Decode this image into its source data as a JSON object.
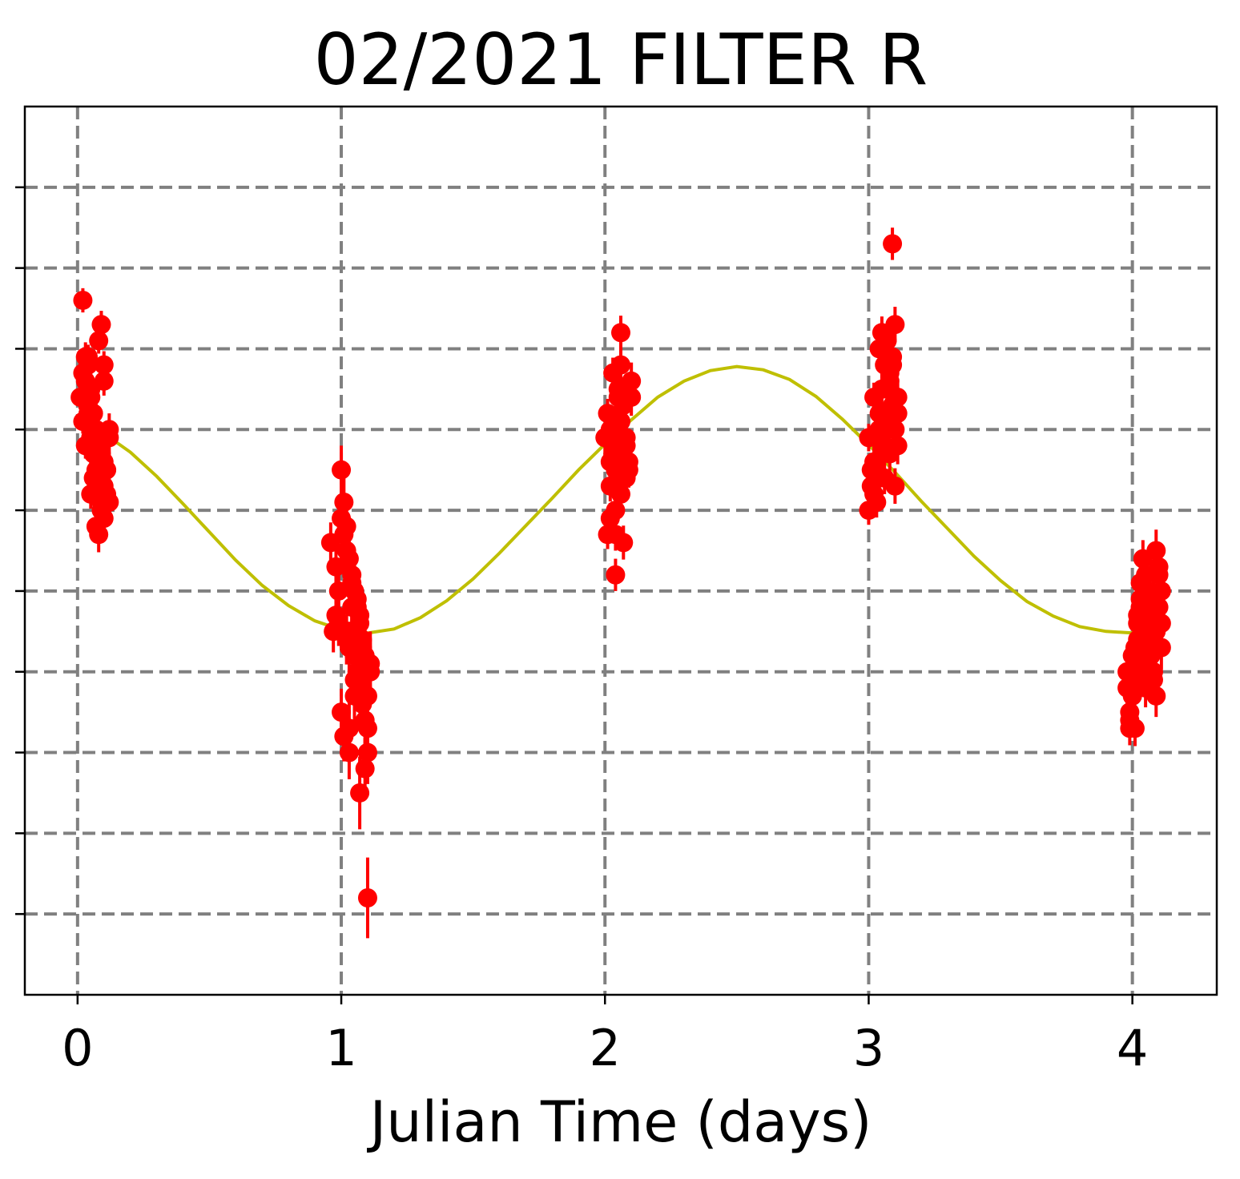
{
  "chart_data": {
    "type": "scatter",
    "title": "02/2021 FILTER R",
    "xlabel": "Julian Time (days)",
    "ylabel": "",
    "xlim": [
      -0.2,
      4.32
    ],
    "ylim": [
      0,
      11
    ],
    "xticks": [
      0,
      1,
      2,
      3,
      4
    ],
    "xtick_labels": [
      "0",
      "1",
      "2",
      "3",
      "4"
    ],
    "yticks": [
      1,
      2,
      3,
      4,
      5,
      6,
      7,
      8,
      9,
      10
    ],
    "ytick_labels_visible": false,
    "grid": true,
    "colors": {
      "points": "#ff0000",
      "fit": "#bfbf00",
      "grid": "#808080"
    },
    "fit_curve": {
      "x": [
        0.0,
        0.1,
        0.2,
        0.3,
        0.4,
        0.5,
        0.6,
        0.7,
        0.8,
        0.9,
        1.0,
        1.1,
        1.2,
        1.3,
        1.4,
        1.5,
        1.6,
        1.7,
        1.8,
        1.9,
        2.0,
        2.1,
        2.2,
        2.3,
        2.4,
        2.5,
        2.6,
        2.7,
        2.8,
        2.9,
        3.0,
        3.1,
        3.2,
        3.3,
        3.4,
        3.5,
        3.6,
        3.7,
        3.8,
        3.9,
        4.0
      ],
      "y": [
        7.05,
        6.95,
        6.72,
        6.42,
        6.08,
        5.73,
        5.38,
        5.07,
        4.82,
        4.63,
        4.52,
        4.48,
        4.53,
        4.67,
        4.88,
        5.15,
        5.47,
        5.81,
        6.15,
        6.5,
        6.82,
        7.12,
        7.4,
        7.6,
        7.73,
        7.78,
        7.74,
        7.62,
        7.41,
        7.13,
        6.81,
        6.47,
        6.11,
        5.77,
        5.43,
        5.13,
        4.87,
        4.69,
        4.56,
        4.5,
        4.48
      ]
    },
    "series": [
      {
        "x": [
          0.01,
          0.02,
          0.03,
          0.02,
          0.04,
          0.05,
          0.06,
          0.07,
          0.08,
          0.09,
          0.1,
          0.11,
          0.03,
          0.04,
          0.05,
          0.06,
          0.07,
          0.08,
          0.09,
          0.1,
          0.11,
          0.12,
          0.04,
          0.05,
          0.06,
          0.07,
          0.08,
          0.09,
          0.03,
          0.06,
          0.1,
          0.08,
          0.05,
          0.09,
          0.07,
          0.11,
          0.1,
          0.12,
          0.02,
          0.08,
          0.06,
          0.04,
          0.1,
          0.12,
          0.09,
          0.07
        ],
        "y": [
          7.4,
          7.7,
          7.9,
          7.1,
          7.3,
          7.5,
          7.2,
          7.0,
          6.9,
          6.7,
          6.6,
          6.5,
          7.6,
          7.8,
          7.4,
          7.0,
          6.8,
          6.6,
          6.4,
          6.3,
          6.2,
          6.1,
          7.2,
          6.9,
          6.7,
          6.5,
          6.3,
          6.0,
          6.8,
          6.4,
          5.9,
          5.7,
          6.2,
          6.1,
          5.8,
          6.5,
          7.8,
          6.9,
          8.6,
          8.1,
          7.2,
          7.9,
          7.6,
          7.0,
          8.3,
          6.7
        ],
        "err": [
          0.15,
          0.15,
          0.18,
          0.15,
          0.16,
          0.17,
          0.18,
          0.19,
          0.2,
          0.2,
          0.21,
          0.21,
          0.15,
          0.16,
          0.16,
          0.17,
          0.18,
          0.19,
          0.2,
          0.2,
          0.21,
          0.22,
          0.16,
          0.17,
          0.18,
          0.19,
          0.2,
          0.21,
          0.16,
          0.18,
          0.22,
          0.22,
          0.18,
          0.2,
          0.2,
          0.21,
          0.17,
          0.21,
          0.15,
          0.16,
          0.17,
          0.15,
          0.18,
          0.2,
          0.17,
          0.19
        ]
      },
      {
        "x": [
          0.96,
          0.97,
          0.98,
          0.99,
          1.0,
          1.01,
          1.02,
          1.03,
          1.04,
          1.05,
          1.06,
          1.07,
          1.08,
          1.09,
          1.1,
          1.11,
          0.98,
          1.0,
          1.02,
          1.04,
          1.06,
          1.08,
          1.1,
          1.01,
          1.03,
          1.05,
          1.07,
          1.09,
          0.99,
          1.02,
          1.04,
          1.06,
          1.08,
          1.1,
          1.0,
          1.03,
          1.05,
          1.07,
          1.09,
          1.11,
          1.01,
          1.04,
          1.06,
          1.08,
          1.1,
          1.03,
          1.07,
          1.05
        ],
        "y": [
          5.6,
          4.5,
          4.7,
          5.0,
          6.5,
          6.1,
          5.8,
          5.4,
          5.2,
          5.0,
          4.8,
          4.6,
          4.4,
          4.2,
          4.1,
          4.0,
          5.3,
          5.9,
          5.5,
          5.1,
          4.9,
          4.3,
          3.7,
          3.2,
          3.0,
          4.2,
          4.0,
          3.4,
          4.6,
          4.4,
          4.8,
          3.9,
          3.6,
          3.0,
          3.5,
          3.3,
          3.9,
          4.7,
          2.8,
          4.1,
          5.7,
          4.5,
          4.0,
          3.8,
          3.3,
          4.3,
          2.5,
          3.7
        ],
        "err": [
          0.25,
          0.26,
          0.27,
          0.28,
          0.3,
          0.3,
          0.31,
          0.32,
          0.33,
          0.34,
          0.35,
          0.36,
          0.37,
          0.38,
          0.39,
          0.4,
          0.28,
          0.29,
          0.31,
          0.33,
          0.35,
          0.37,
          0.39,
          0.31,
          0.33,
          0.35,
          0.37,
          0.39,
          0.28,
          0.31,
          0.33,
          0.35,
          0.37,
          0.39,
          0.29,
          0.32,
          0.34,
          0.36,
          0.38,
          0.4,
          0.3,
          0.33,
          0.35,
          0.37,
          0.4,
          0.32,
          0.45,
          0.34
        ]
      },
      {
        "x": [
          1.1
        ],
        "y": [
          1.2
        ],
        "err": [
          0.5
        ]
      },
      {
        "x": [
          2.0,
          2.01,
          2.02,
          2.03,
          2.04,
          2.05,
          2.06,
          2.07,
          2.08,
          2.09,
          2.1,
          2.02,
          2.04,
          2.06,
          2.08,
          2.1,
          2.01,
          2.03,
          2.05,
          2.07,
          2.09,
          2.02,
          2.04,
          2.06,
          2.08,
          2.03,
          2.05,
          2.07,
          2.04,
          2.06,
          2.02
        ],
        "y": [
          6.9,
          7.2,
          7.0,
          6.7,
          6.5,
          7.5,
          7.8,
          7.3,
          6.8,
          6.6,
          7.6,
          6.3,
          5.7,
          7.1,
          6.4,
          7.4,
          5.7,
          6.8,
          7.0,
          6.6,
          6.5,
          5.9,
          5.2,
          8.2,
          6.9,
          7.7,
          7.4,
          5.6,
          6.0,
          6.2,
          6.6
        ],
        "err": [
          0.18,
          0.18,
          0.19,
          0.19,
          0.2,
          0.2,
          0.21,
          0.21,
          0.22,
          0.22,
          0.23,
          0.19,
          0.2,
          0.21,
          0.22,
          0.23,
          0.18,
          0.19,
          0.2,
          0.21,
          0.22,
          0.19,
          0.2,
          0.21,
          0.22,
          0.19,
          0.2,
          0.21,
          0.2,
          0.21,
          0.19
        ]
      },
      {
        "x": [
          3.0,
          3.01,
          3.02,
          3.03,
          3.04,
          3.05,
          3.06,
          3.07,
          3.08,
          3.09,
          3.1,
          3.11,
          3.01,
          3.03,
          3.05,
          3.07,
          3.09,
          3.11,
          3.02,
          3.04,
          3.06,
          3.08,
          3.1,
          3.0,
          3.02,
          3.04,
          3.06,
          3.08,
          3.1,
          3.03,
          3.05,
          3.07,
          3.09,
          3.11,
          3.06,
          3.08,
          3.04
        ],
        "y": [
          6.0,
          6.3,
          6.6,
          6.9,
          7.2,
          7.5,
          7.8,
          8.1,
          7.6,
          7.3,
          7.0,
          6.8,
          6.5,
          6.1,
          6.7,
          7.1,
          7.9,
          7.4,
          6.2,
          7.0,
          6.4,
          7.7,
          8.3,
          6.9,
          7.4,
          8.0,
          6.8,
          7.2,
          6.3,
          6.6,
          8.2,
          7.5,
          7.8,
          7.2,
          7.0,
          6.7,
          6.4
        ],
        "err": [
          0.18,
          0.18,
          0.19,
          0.19,
          0.2,
          0.2,
          0.21,
          0.21,
          0.22,
          0.22,
          0.23,
          0.23,
          0.18,
          0.19,
          0.2,
          0.21,
          0.22,
          0.23,
          0.18,
          0.19,
          0.2,
          0.21,
          0.22,
          0.17,
          0.18,
          0.19,
          0.2,
          0.21,
          0.22,
          0.19,
          0.2,
          0.21,
          0.22,
          0.23,
          0.2,
          0.21,
          0.19
        ]
      },
      {
        "x": [
          3.09
        ],
        "y": [
          9.3
        ],
        "err": [
          0.2
        ]
      },
      {
        "x": [
          3.98,
          3.99,
          4.0,
          4.01,
          4.02,
          4.03,
          4.04,
          4.05,
          4.06,
          4.07,
          4.08,
          4.09,
          4.1,
          4.11,
          3.99,
          4.01,
          4.03,
          4.05,
          4.07,
          4.09,
          4.11,
          4.0,
          4.02,
          4.04,
          4.06,
          4.08,
          4.1,
          3.98,
          4.0,
          4.02,
          4.04,
          4.06,
          4.08,
          4.1,
          4.01,
          4.03,
          4.05,
          4.07,
          4.09,
          4.11,
          3.99,
          4.04,
          4.08
        ],
        "y": [
          4.0,
          3.5,
          3.7,
          4.3,
          4.7,
          5.1,
          5.4,
          4.9,
          4.6,
          4.2,
          4.0,
          5.5,
          5.3,
          5.0,
          3.4,
          4.1,
          4.8,
          5.2,
          4.4,
          4.5,
          4.6,
          3.9,
          4.4,
          4.5,
          5.0,
          4.7,
          5.2,
          3.8,
          4.2,
          4.6,
          4.1,
          4.3,
          3.9,
          4.8,
          3.3,
          4.9,
          3.8,
          4.4,
          3.7,
          4.3,
          3.3,
          4.0,
          4.9
        ],
        "err": [
          0.2,
          0.21,
          0.21,
          0.22,
          0.22,
          0.23,
          0.23,
          0.24,
          0.24,
          0.25,
          0.25,
          0.26,
          0.26,
          0.27,
          0.21,
          0.22,
          0.23,
          0.24,
          0.25,
          0.26,
          0.27,
          0.21,
          0.22,
          0.23,
          0.24,
          0.25,
          0.26,
          0.2,
          0.21,
          0.22,
          0.23,
          0.24,
          0.25,
          0.26,
          0.22,
          0.23,
          0.24,
          0.25,
          0.26,
          0.27,
          0.21,
          0.23,
          0.25
        ]
      }
    ]
  }
}
